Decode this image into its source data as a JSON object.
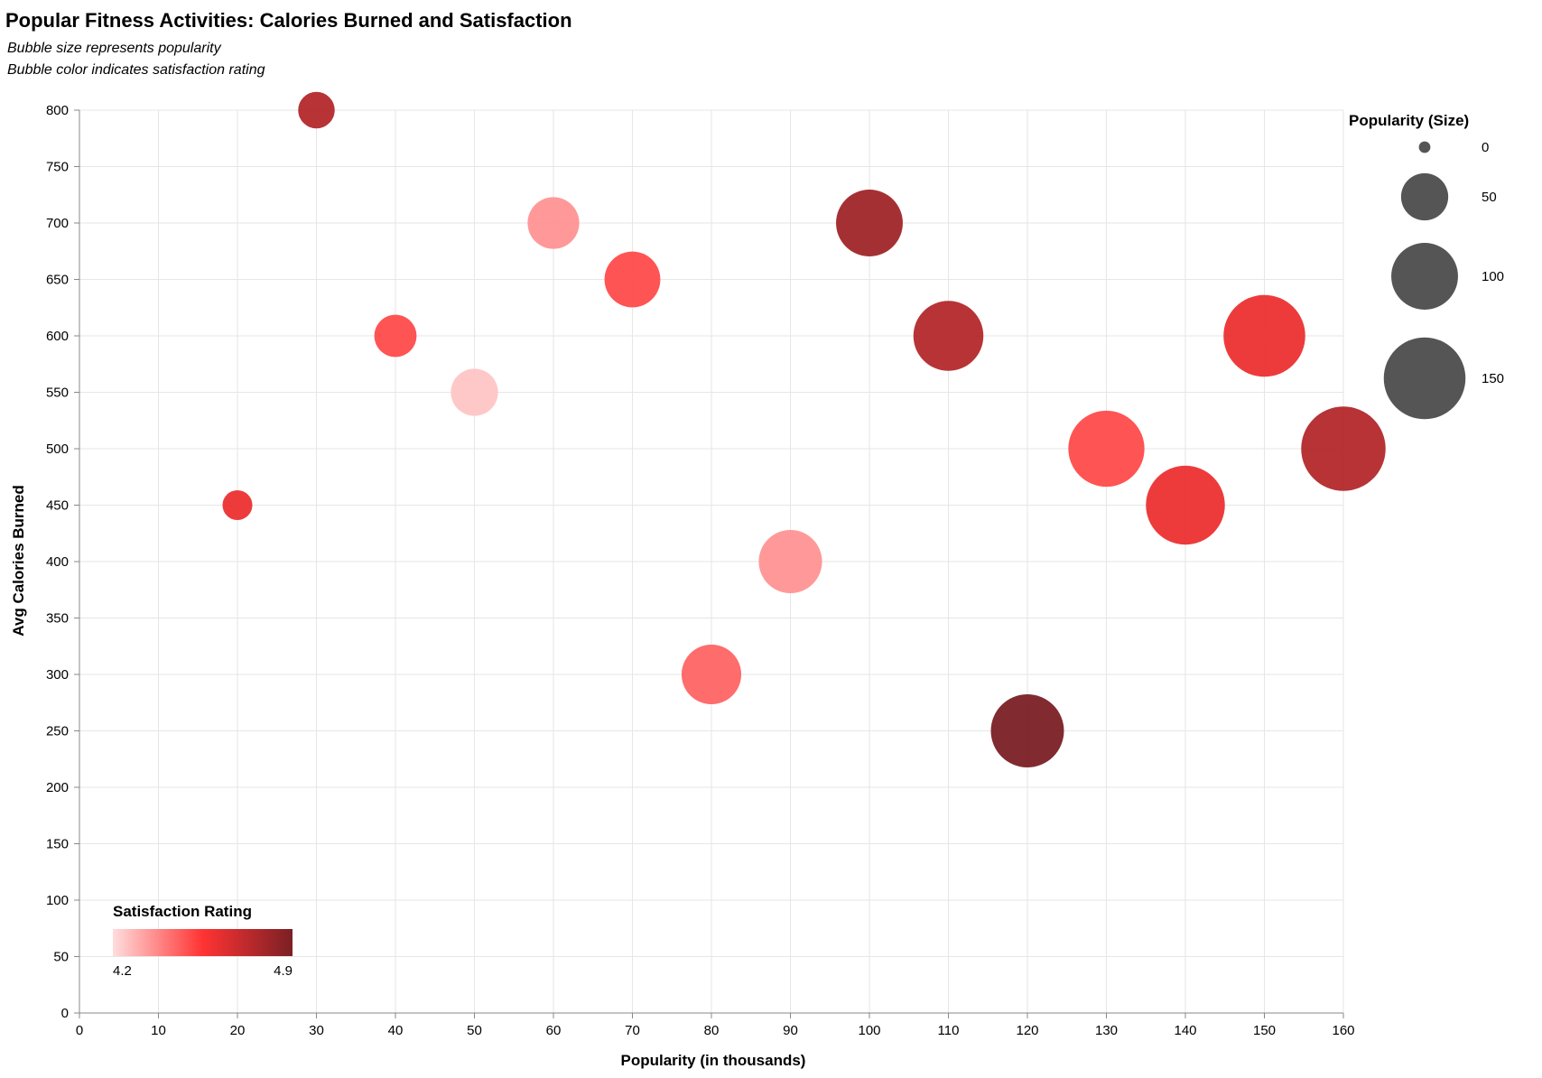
{
  "chart_data": {
    "type": "scatter",
    "title": "Popular Fitness Activities: Calories Burned and Satisfaction",
    "subtitle": [
      "Bubble size represents popularity",
      "Bubble color indicates satisfaction rating"
    ],
    "xlabel": "Popularity (in thousands)",
    "ylabel": "Avg Calories Burned",
    "xlim": [
      0,
      160
    ],
    "ylim": [
      0,
      800
    ],
    "x_ticks": [
      0,
      10,
      20,
      30,
      40,
      50,
      60,
      70,
      80,
      90,
      100,
      110,
      120,
      130,
      140,
      150,
      160
    ],
    "y_ticks": [
      0,
      50,
      100,
      150,
      200,
      250,
      300,
      350,
      400,
      450,
      500,
      550,
      600,
      650,
      700,
      750,
      800
    ],
    "grid": true,
    "points": [
      {
        "x": 20,
        "y": 450,
        "satisfaction": 4.6
      },
      {
        "x": 30,
        "y": 800,
        "satisfaction": 4.75
      },
      {
        "x": 40,
        "y": 600,
        "satisfaction": 4.5
      },
      {
        "x": 50,
        "y": 550,
        "satisfaction": 4.25
      },
      {
        "x": 60,
        "y": 700,
        "satisfaction": 4.35
      },
      {
        "x": 70,
        "y": 650,
        "satisfaction": 4.5
      },
      {
        "x": 80,
        "y": 300,
        "satisfaction": 4.45
      },
      {
        "x": 90,
        "y": 400,
        "satisfaction": 4.35
      },
      {
        "x": 100,
        "y": 700,
        "satisfaction": 4.8
      },
      {
        "x": 110,
        "y": 600,
        "satisfaction": 4.75
      },
      {
        "x": 120,
        "y": 250,
        "satisfaction": 4.9
      },
      {
        "x": 130,
        "y": 500,
        "satisfaction": 4.5
      },
      {
        "x": 140,
        "y": 450,
        "satisfaction": 4.6
      },
      {
        "x": 150,
        "y": 600,
        "satisfaction": 4.6
      },
      {
        "x": 160,
        "y": 500,
        "satisfaction": 4.75
      }
    ],
    "size_legend": {
      "title": "Popularity (Size)",
      "values": [
        0,
        50,
        100,
        150
      ],
      "labels": [
        "0",
        "50",
        "100",
        "150"
      ],
      "color": "#555555",
      "placement": "top-right"
    },
    "color_legend": {
      "title": "Satisfaction Rating",
      "min": 4.2,
      "max": 4.9,
      "min_label": "4.2",
      "max_label": "4.9",
      "colors": [
        "#ffdddd",
        "#ff3333",
        "#7a2025"
      ],
      "placement": "bottom-left"
    }
  }
}
